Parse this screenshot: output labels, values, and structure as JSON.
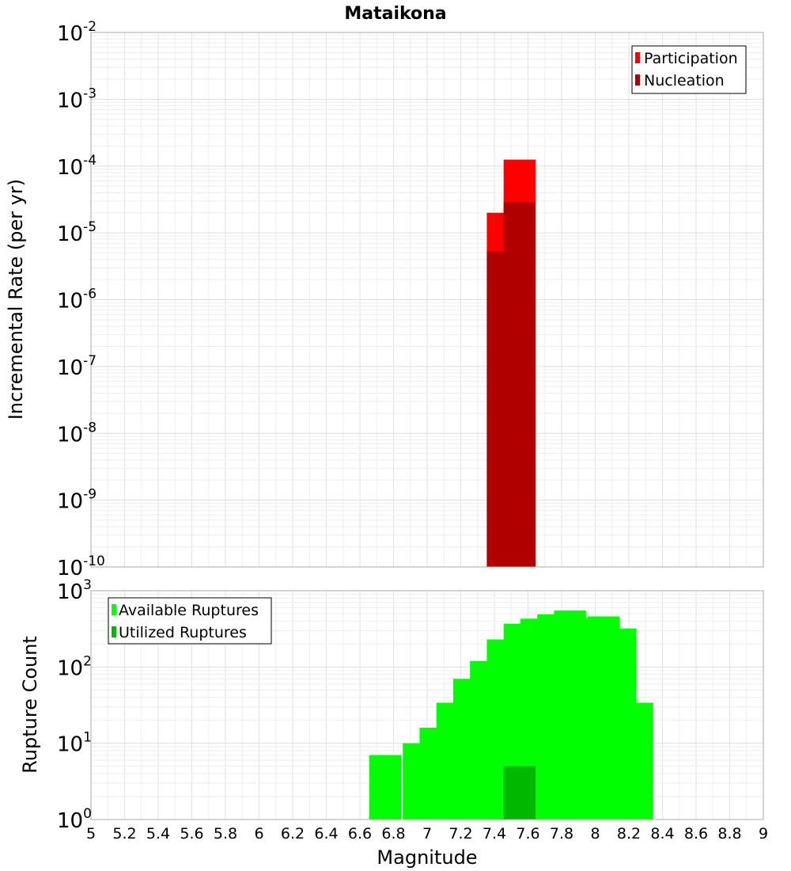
{
  "chart_data": [
    {
      "type": "bar",
      "title": "Mataikona",
      "xlabel": "Magnitude",
      "ylabel": "Incremental Rate (per yr)",
      "yscale": "log",
      "xlim": [
        5,
        9
      ],
      "ylim_exp": [
        -10,
        -2
      ],
      "legend_position": "top-right",
      "series": [
        {
          "name": "Participation",
          "color": "#ff0000",
          "points": [
            [
              7.45,
              2e-05
            ],
            [
              7.55,
              0.000125
            ]
          ]
        },
        {
          "name": "Nucleation",
          "color": "#b00000",
          "points": [
            [
              7.45,
              5.3e-06
            ],
            [
              7.55,
              2.9e-05
            ]
          ]
        }
      ]
    },
    {
      "type": "bar",
      "title": "",
      "xlabel": "Magnitude",
      "ylabel": "Rupture Count",
      "yscale": "log",
      "xlim": [
        5,
        9
      ],
      "ylim_exp": [
        0,
        3
      ],
      "legend_position": "top-left",
      "series": [
        {
          "name": "Available Ruptures",
          "color": "#00ff00",
          "points": [
            [
              6.75,
              7
            ],
            [
              6.95,
              10
            ],
            [
              7.05,
              16
            ],
            [
              7.15,
              34
            ],
            [
              7.25,
              70
            ],
            [
              7.35,
              120
            ],
            [
              7.45,
              230
            ],
            [
              7.55,
              370
            ],
            [
              7.65,
              430
            ],
            [
              7.75,
              490
            ],
            [
              7.85,
              550
            ],
            [
              7.95,
              440
            ],
            [
              8.05,
              460
            ],
            [
              8.15,
              320
            ],
            [
              8.25,
              34
            ]
          ]
        },
        {
          "name": "Utilized Ruptures",
          "color": "#00b800",
          "points": [
            [
              7.45,
              1
            ],
            [
              7.55,
              5
            ]
          ]
        }
      ]
    }
  ],
  "x_ticks": [
    "5",
    "5.2",
    "5.4",
    "5.6",
    "5.8",
    "6",
    "6.2",
    "6.4",
    "6.6",
    "6.8",
    "7",
    "7.2",
    "7.4",
    "7.6",
    "7.8",
    "8",
    "8.2",
    "8.4",
    "8.6",
    "8.8",
    "9"
  ]
}
